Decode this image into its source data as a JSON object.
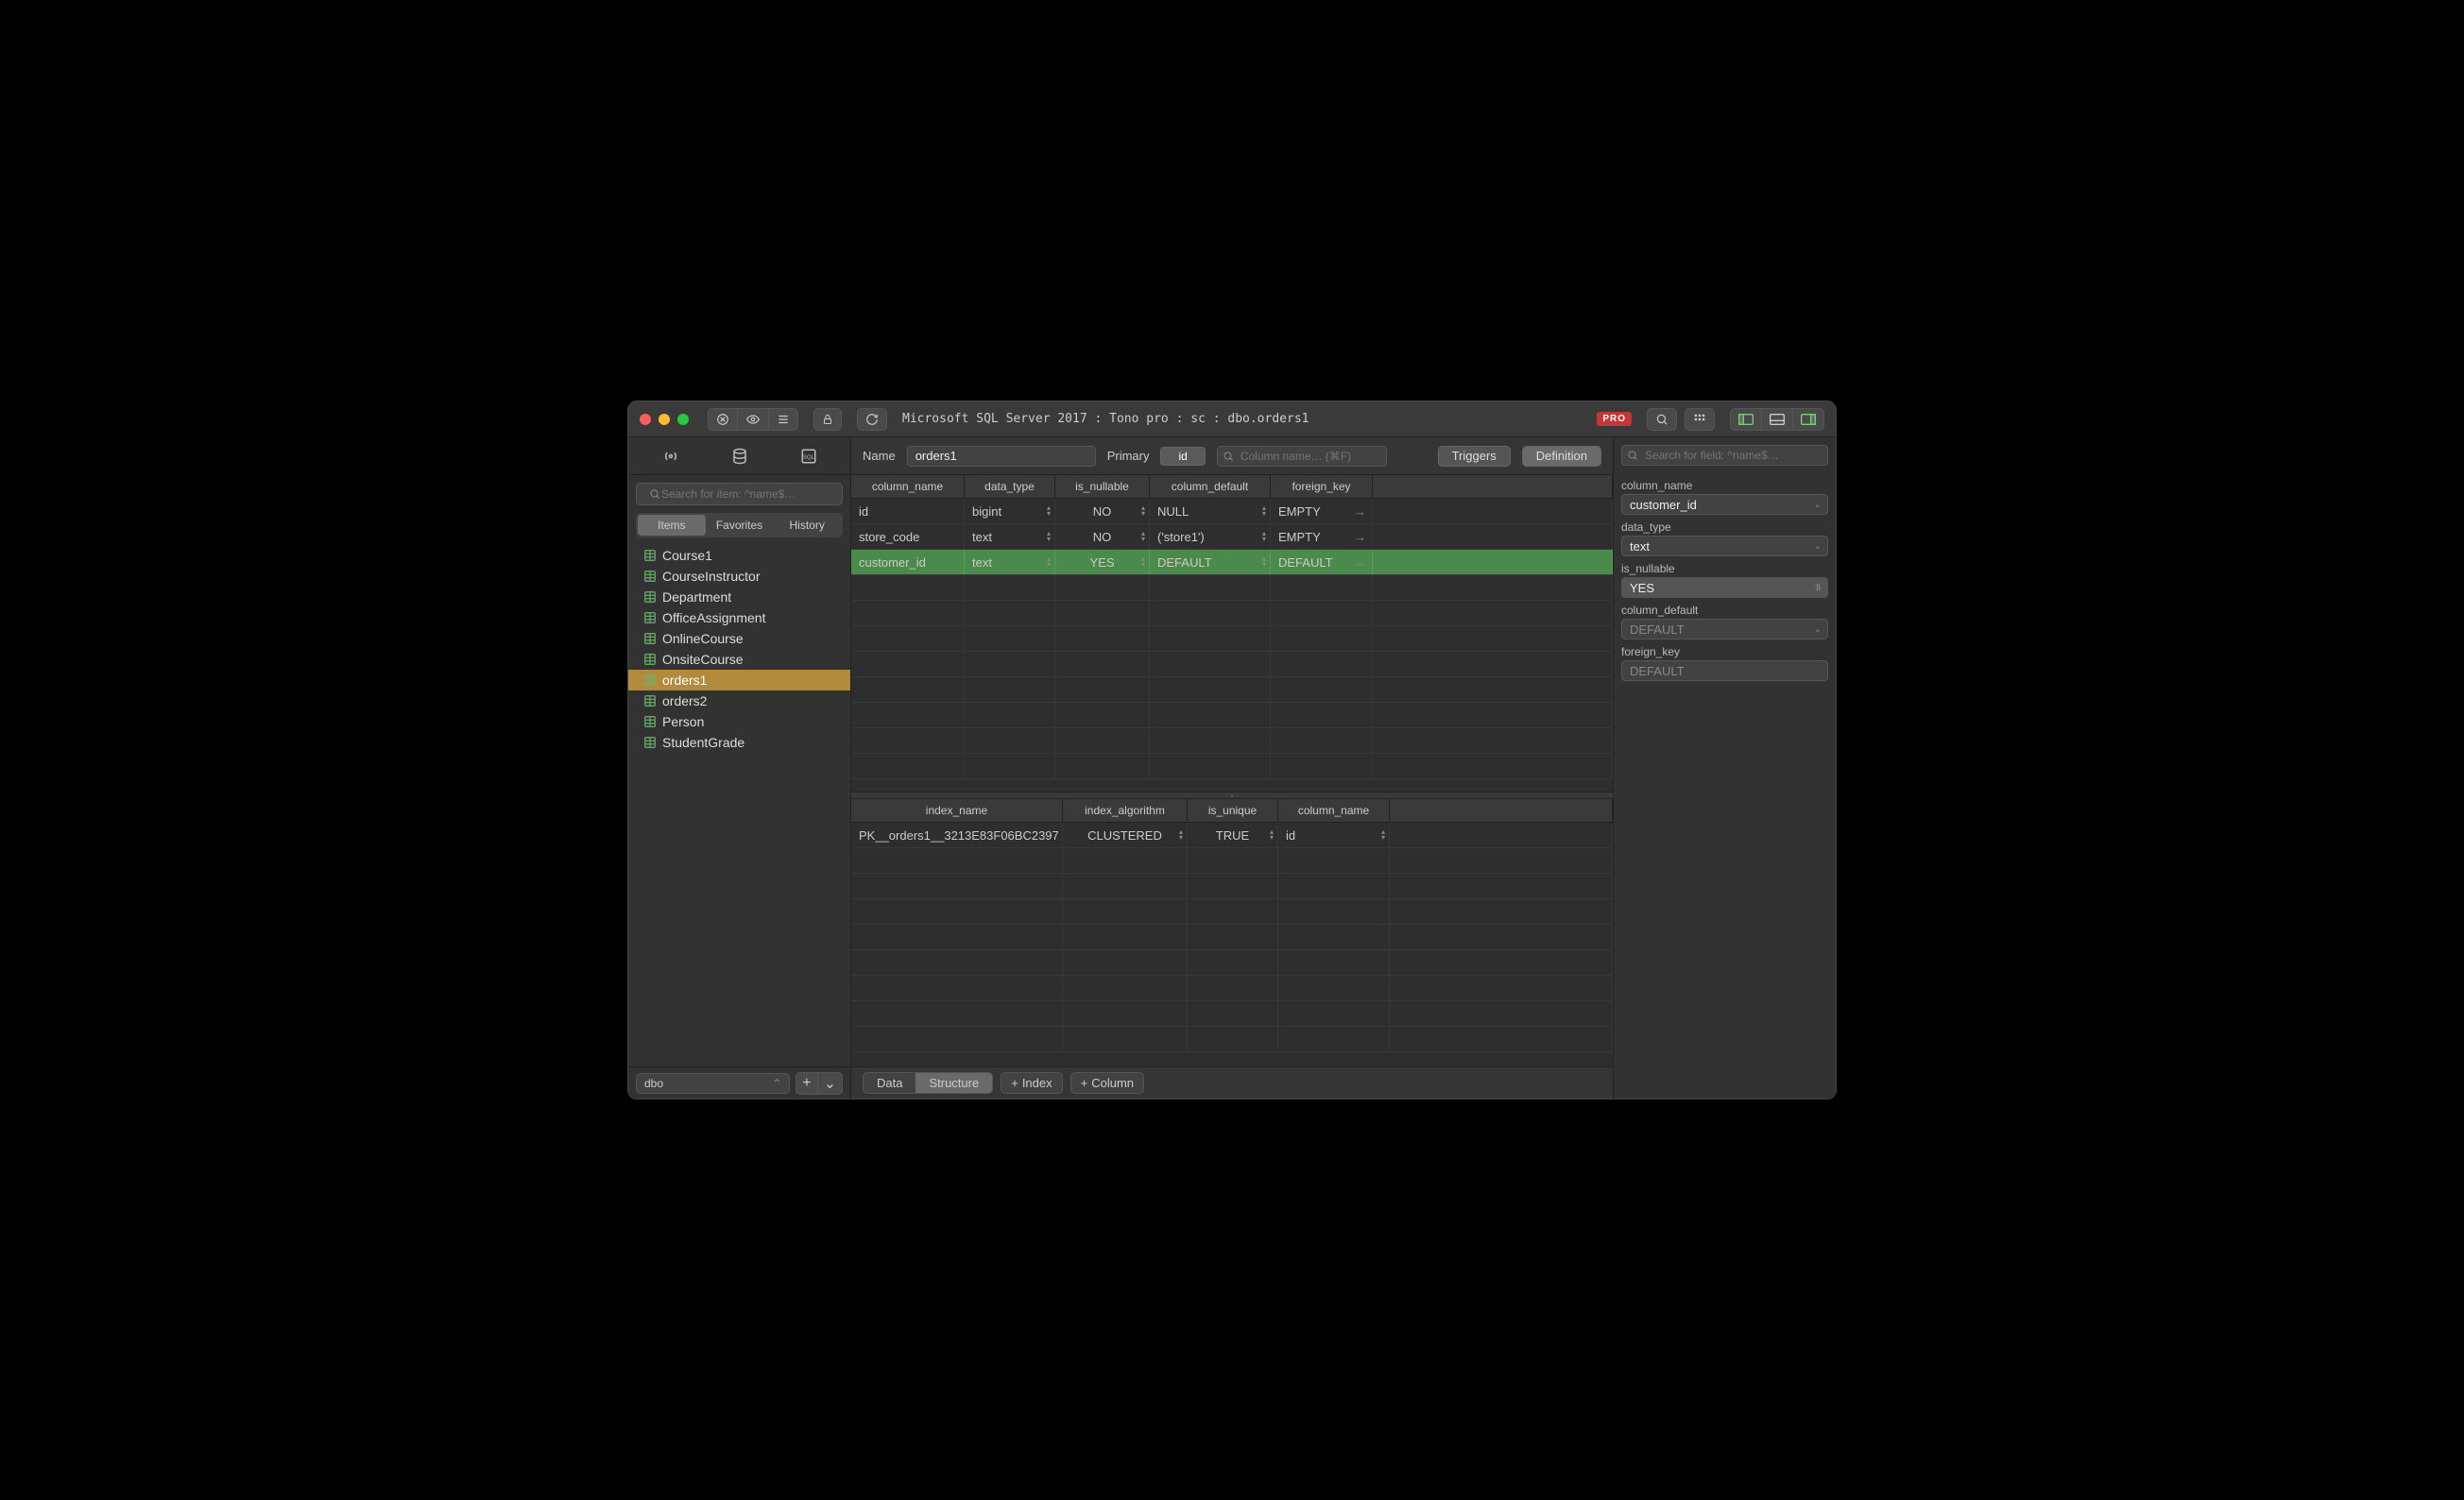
{
  "titlebar": {
    "breadcrumb": "Microsoft SQL Server 2017 : Tono pro : sc : dbo.orders1",
    "pro_badge": "PRO",
    "traffic_colors": [
      "#ff5f57",
      "#febc2e",
      "#28c840"
    ]
  },
  "sidebar": {
    "search_placeholder": "Search for item: ^name$…",
    "tabs": {
      "items": "Items",
      "favorites": "Favorites",
      "history": "History"
    },
    "tables": [
      "Course1",
      "CourseInstructor",
      "Department",
      "OfficeAssignment",
      "OnlineCourse",
      "OnsiteCourse",
      "orders1",
      "orders2",
      "Person",
      "StudentGrade"
    ],
    "selected_table": "orders1",
    "schema": "dbo"
  },
  "main": {
    "name_label": "Name",
    "name_value": "orders1",
    "primary_label": "Primary",
    "primary_value": "id",
    "col_search_placeholder": "Column name… (⌘F)",
    "triggers_btn": "Triggers",
    "definition_btn": "Definition",
    "columns_grid": {
      "headers": {
        "name": "column_name",
        "type": "data_type",
        "nullable": "is_nullable",
        "default": "column_default",
        "fk": "foreign_key"
      },
      "rows": [
        {
          "name": "id",
          "type": "bigint",
          "nullable": "NO",
          "default": "NULL",
          "fk": "EMPTY",
          "default_muted": true,
          "fk_muted": true
        },
        {
          "name": "store_code",
          "type": "text",
          "nullable": "NO",
          "default": "('store1')",
          "fk": "EMPTY",
          "fk_muted": true
        },
        {
          "name": "customer_id",
          "type": "text",
          "nullable": "YES",
          "default": "DEFAULT",
          "fk": "DEFAULT",
          "selected": true
        }
      ]
    },
    "indexes_grid": {
      "headers": {
        "name": "index_name",
        "alg": "index_algorithm",
        "unique": "is_unique",
        "col": "column_name"
      },
      "rows": [
        {
          "name": "PK__orders1__3213E83F06BC2397",
          "alg": "CLUSTERED",
          "unique": "TRUE",
          "col": "id"
        }
      ]
    },
    "bottom": {
      "data": "Data",
      "structure": "Structure",
      "index": "Index",
      "column": "Column"
    }
  },
  "inspector": {
    "search_placeholder": "Search for field: ^name$…",
    "labels": {
      "name": "column_name",
      "type": "data_type",
      "nullable": "is_nullable",
      "default": "column_default",
      "fk": "foreign_key"
    },
    "values": {
      "name": "customer_id",
      "type": "text",
      "nullable": "YES",
      "default": "DEFAULT",
      "fk": "DEFAULT"
    }
  }
}
